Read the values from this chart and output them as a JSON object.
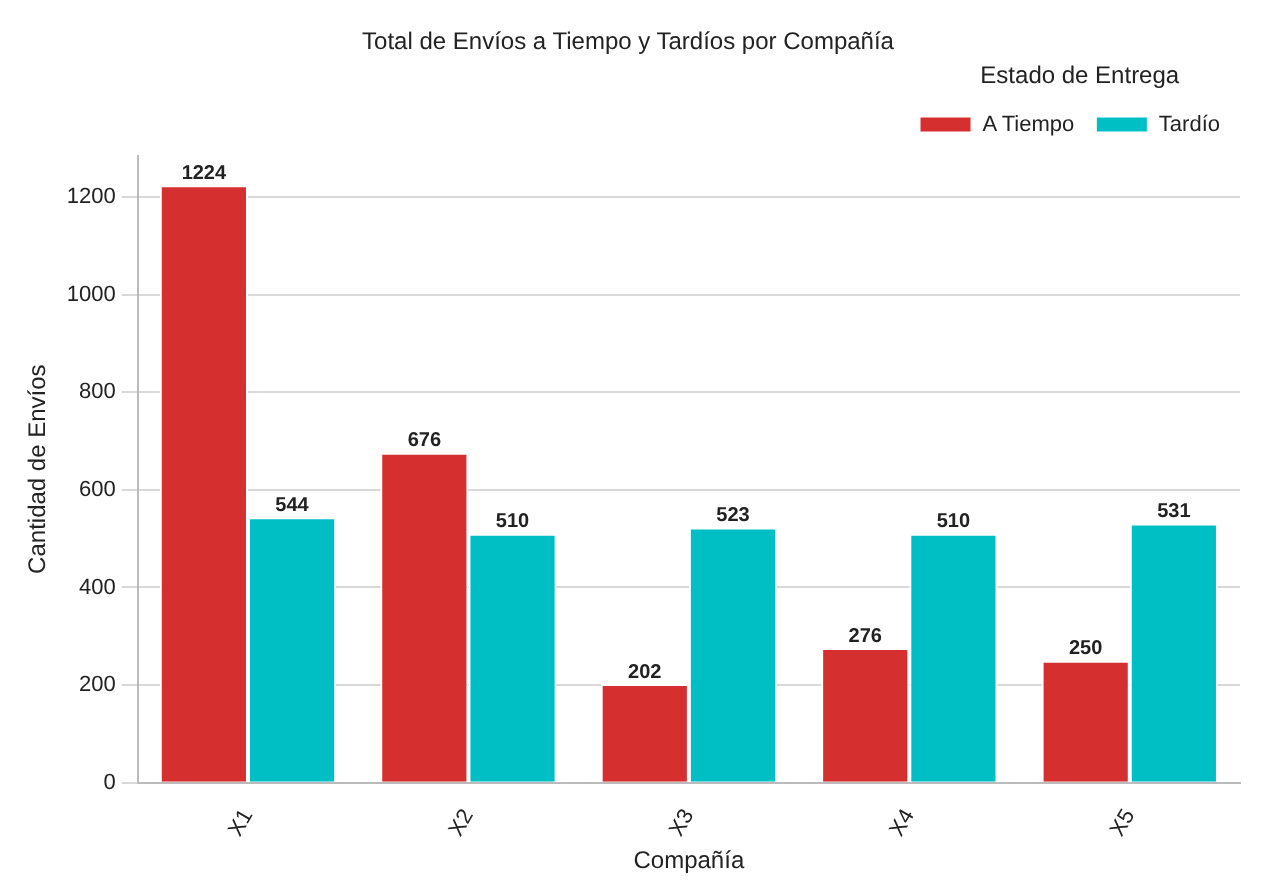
{
  "chart_data": {
    "type": "bar",
    "title": "Total de Envíos a Tiempo y Tardíos por Compañía",
    "xlabel": "Compañía",
    "ylabel": "Cantidad de Envíos",
    "legend_title": "Estado de Entrega",
    "categories": [
      "X1",
      "X2",
      "X3",
      "X4",
      "X5"
    ],
    "series": [
      {
        "name": "A Tiempo",
        "color": "#d62f2f",
        "values": [
          1224,
          676,
          202,
          276,
          250
        ]
      },
      {
        "name": "Tardío",
        "color": "#00bfc4",
        "values": [
          544,
          510,
          523,
          510,
          531
        ]
      }
    ],
    "ylim": [
      0,
      1285
    ],
    "yticks": [
      0,
      200,
      400,
      600,
      800,
      1000,
      1200
    ],
    "grid": "y",
    "legend": "top right",
    "data_labels": true
  }
}
